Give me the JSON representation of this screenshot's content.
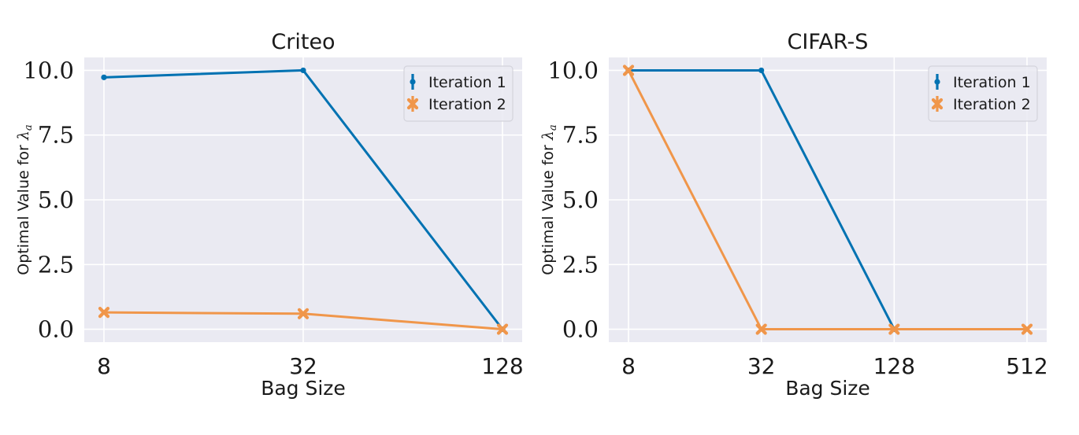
{
  "ylabel_prefix": "Optimal Value for ",
  "ylabel_symbol": "λ",
  "ylabel_subscript": "a",
  "chart_data": [
    {
      "type": "line",
      "title": "Criteo",
      "xlabel": "Bag Size",
      "ylabel": "Optimal Value for λ_a",
      "x_scale": "log2",
      "categories": [
        "8",
        "32",
        "128"
      ],
      "x": [
        8,
        32,
        128
      ],
      "ylim": [
        -0.5,
        10.5
      ],
      "yticks": [
        "0.0",
        "2.5",
        "5.0",
        "7.5",
        "10.0"
      ],
      "ytick_values": [
        0,
        2.5,
        5,
        7.5,
        10
      ],
      "grid": true,
      "legend_position": "top-right",
      "series": [
        {
          "name": "Iteration 1",
          "color": "#0072b2",
          "marker": "dot",
          "values": [
            9.73,
            10.0,
            0.0
          ]
        },
        {
          "name": "Iteration 2",
          "color": "#f0964a",
          "marker": "x",
          "values": [
            0.65,
            0.6,
            0.0
          ]
        }
      ]
    },
    {
      "type": "line",
      "title": "CIFAR-S",
      "xlabel": "Bag Size",
      "ylabel": "Optimal Value for λ_a",
      "x_scale": "log2",
      "categories": [
        "8",
        "32",
        "128",
        "512"
      ],
      "x": [
        8,
        32,
        128,
        512
      ],
      "ylim": [
        -0.5,
        10.5
      ],
      "yticks": [
        "0.0",
        "2.5",
        "5.0",
        "7.5",
        "10.0"
      ],
      "ytick_values": [
        0,
        2.5,
        5,
        7.5,
        10
      ],
      "grid": true,
      "legend_position": "top-right",
      "series": [
        {
          "name": "Iteration 1",
          "color": "#0072b2",
          "marker": "dot",
          "values": [
            10.0,
            10.0,
            0.0,
            null
          ]
        },
        {
          "name": "Iteration 2",
          "color": "#f0964a",
          "marker": "x",
          "values": [
            10.0,
            0.0,
            0.0,
            0.0
          ]
        }
      ]
    }
  ]
}
